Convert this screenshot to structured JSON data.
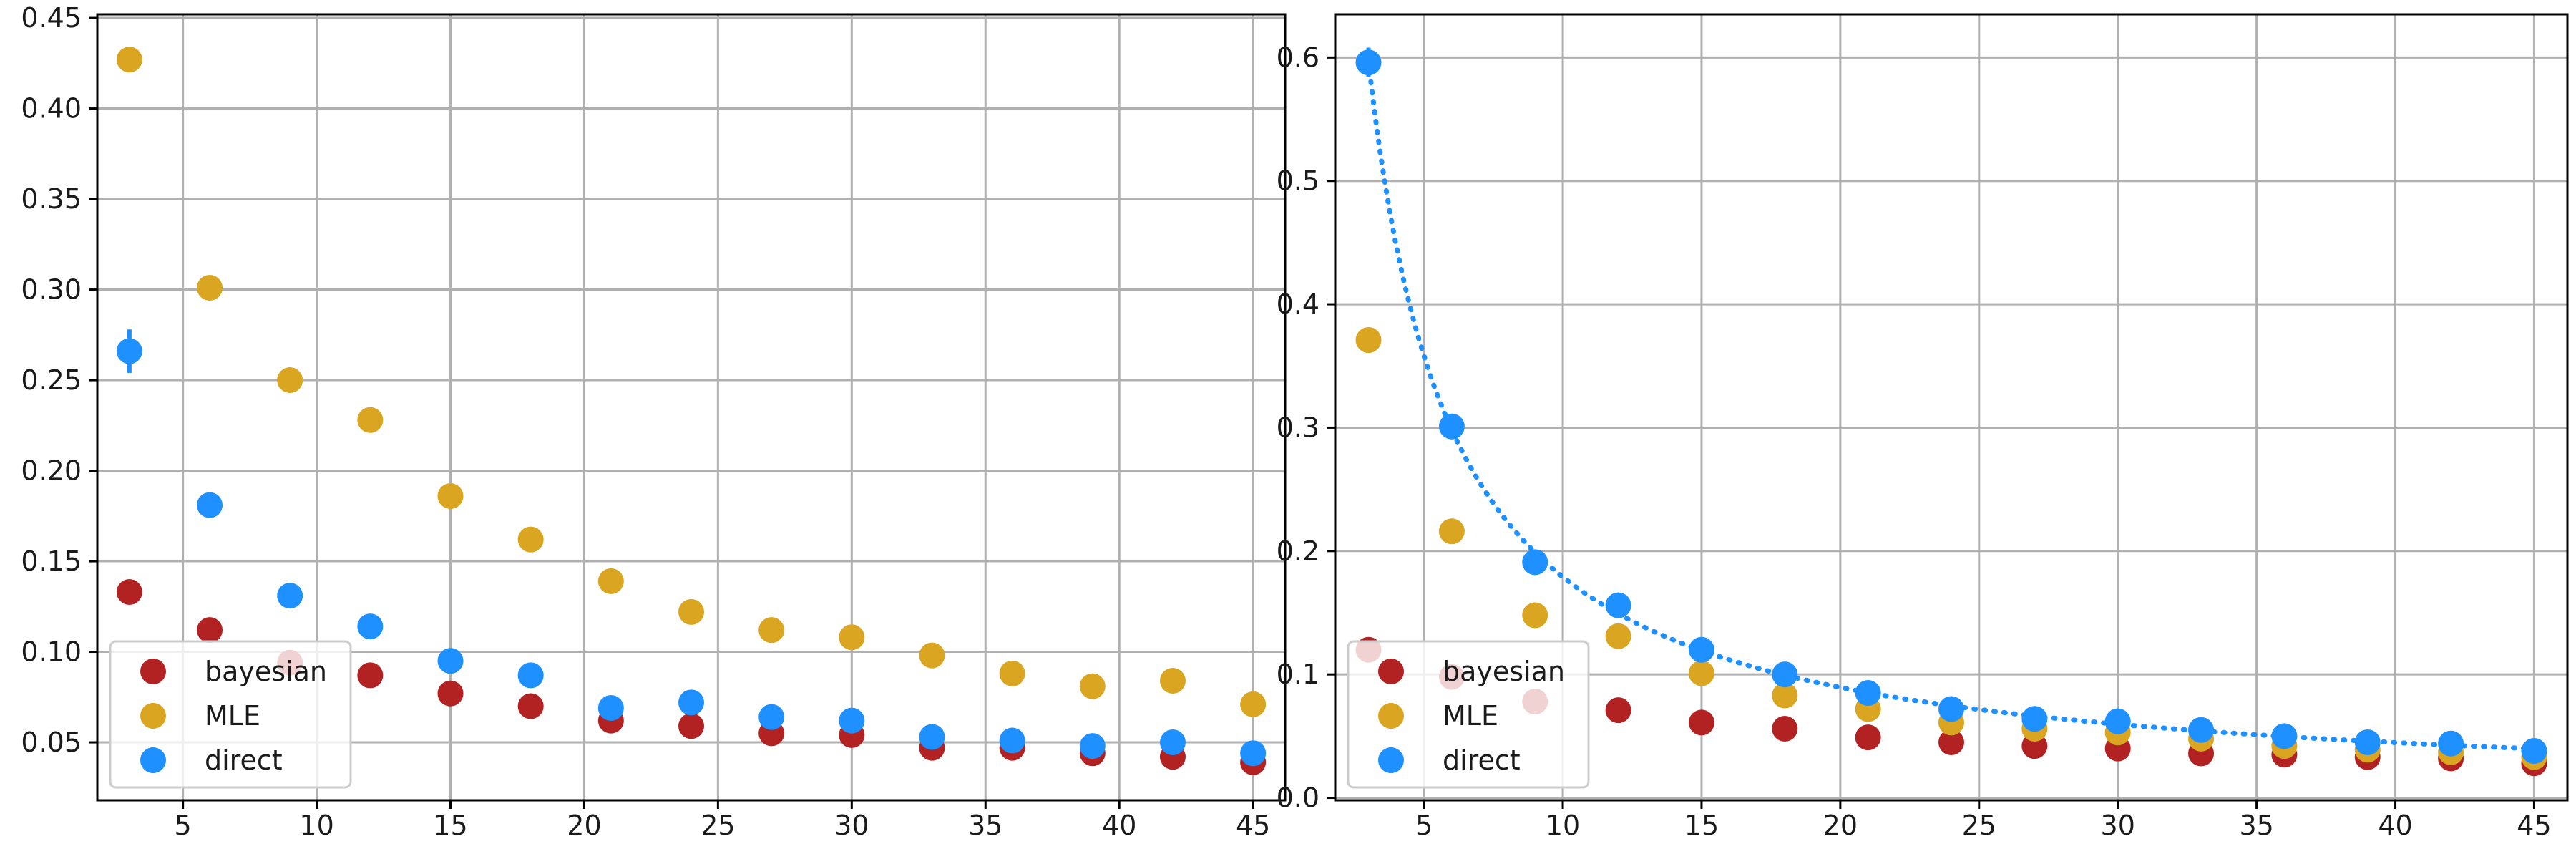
{
  "chart_data": [
    {
      "type": "scatter",
      "xlim": [
        1.8,
        46.2
      ],
      "ylim": [
        0.018,
        0.452
      ],
      "x_ticks": [
        5,
        10,
        15,
        20,
        25,
        30,
        35,
        40,
        45
      ],
      "y_ticks": [
        0.05,
        0.1,
        0.15,
        0.2,
        0.25,
        0.3,
        0.35,
        0.4,
        0.45
      ],
      "y_tick_labels": [
        "0.05",
        "0.10",
        "0.15",
        "0.20",
        "0.25",
        "0.30",
        "0.35",
        "0.40",
        "0.45"
      ],
      "grid": true,
      "legend": {
        "placement": "lower-left",
        "entries": [
          "bayesian",
          "MLE",
          "direct"
        ]
      },
      "x": [
        3,
        6,
        9,
        12,
        15,
        18,
        21,
        24,
        27,
        30,
        33,
        36,
        39,
        42,
        45
      ],
      "series": [
        {
          "name": "bayesian",
          "color": "#b22222",
          "values": [
            0.133,
            0.112,
            0.094,
            0.087,
            0.077,
            0.07,
            0.062,
            0.059,
            0.055,
            0.054,
            0.047,
            0.047,
            0.044,
            0.042,
            0.039
          ],
          "errors": [
            0.002,
            0.002,
            0.002,
            0.002,
            0.002,
            0.002,
            0.002,
            0.002,
            0.002,
            0.002,
            0.002,
            0.002,
            0.002,
            0.002,
            0.002
          ]
        },
        {
          "name": "MLE",
          "color": "#daa520",
          "values": [
            0.427,
            0.301,
            0.25,
            0.228,
            0.186,
            0.162,
            0.139,
            0.122,
            0.112,
            0.108,
            0.098,
            0.088,
            0.081,
            0.084,
            0.071
          ],
          "errors": [
            0.002,
            0.002,
            0.002,
            0.002,
            0.002,
            0.002,
            0.002,
            0.002,
            0.002,
            0.002,
            0.002,
            0.002,
            0.002,
            0.002,
            0.002
          ]
        },
        {
          "name": "direct",
          "color": "#1e90ff",
          "values": [
            0.266,
            0.181,
            0.131,
            0.114,
            0.095,
            0.087,
            0.069,
            0.072,
            0.064,
            0.062,
            0.053,
            0.051,
            0.048,
            0.05,
            0.044
          ],
          "errors": [
            0.012,
            0.007,
            0.003,
            0.003,
            0.003,
            0.003,
            0.003,
            0.003,
            0.003,
            0.003,
            0.003,
            0.003,
            0.003,
            0.003,
            0.003
          ]
        }
      ]
    },
    {
      "type": "scatter",
      "xlim": [
        1.8,
        46.2
      ],
      "ylim": [
        -0.002,
        0.635
      ],
      "x_ticks": [
        5,
        10,
        15,
        20,
        25,
        30,
        35,
        40,
        45
      ],
      "y_ticks": [
        0.0,
        0.1,
        0.2,
        0.3,
        0.4,
        0.5,
        0.6
      ],
      "y_tick_labels": [
        "0.0",
        "0.1",
        "0.2",
        "0.3",
        "0.4",
        "0.5",
        "0.6"
      ],
      "grid": true,
      "legend": {
        "placement": "lower-left",
        "entries": [
          "bayesian",
          "MLE",
          "direct"
        ]
      },
      "x": [
        3,
        6,
        9,
        12,
        15,
        18,
        21,
        24,
        27,
        30,
        33,
        36,
        39,
        42,
        45
      ],
      "series": [
        {
          "name": "bayesian",
          "color": "#b22222",
          "values": [
            0.12,
            0.098,
            0.078,
            0.071,
            0.061,
            0.056,
            0.049,
            0.045,
            0.042,
            0.04,
            0.036,
            0.035,
            0.033,
            0.032,
            0.028
          ],
          "errors": [
            0.002,
            0.002,
            0.002,
            0.002,
            0.002,
            0.002,
            0.002,
            0.002,
            0.002,
            0.002,
            0.002,
            0.002,
            0.002,
            0.002,
            0.002
          ]
        },
        {
          "name": "MLE",
          "color": "#daa520",
          "values": [
            0.371,
            0.216,
            0.148,
            0.131,
            0.101,
            0.083,
            0.072,
            0.061,
            0.056,
            0.053,
            0.048,
            0.042,
            0.039,
            0.037,
            0.033
          ],
          "errors": [
            0.002,
            0.002,
            0.002,
            0.002,
            0.002,
            0.002,
            0.002,
            0.002,
            0.002,
            0.002,
            0.002,
            0.002,
            0.002,
            0.002,
            0.002
          ]
        },
        {
          "name": "direct",
          "color": "#1e90ff",
          "values": [
            0.596,
            0.301,
            0.191,
            0.156,
            0.12,
            0.1,
            0.085,
            0.072,
            0.064,
            0.062,
            0.055,
            0.05,
            0.045,
            0.044,
            0.038
          ],
          "errors": [
            0.012,
            0.004,
            0.003,
            0.003,
            0.003,
            0.003,
            0.003,
            0.003,
            0.003,
            0.003,
            0.003,
            0.003,
            0.003,
            0.003,
            0.003
          ]
        }
      ],
      "fit_curve": {
        "series": "direct",
        "style": "dotted",
        "color": "#1e90ff",
        "formula": "y = a / x",
        "a": 1.79
      }
    }
  ]
}
